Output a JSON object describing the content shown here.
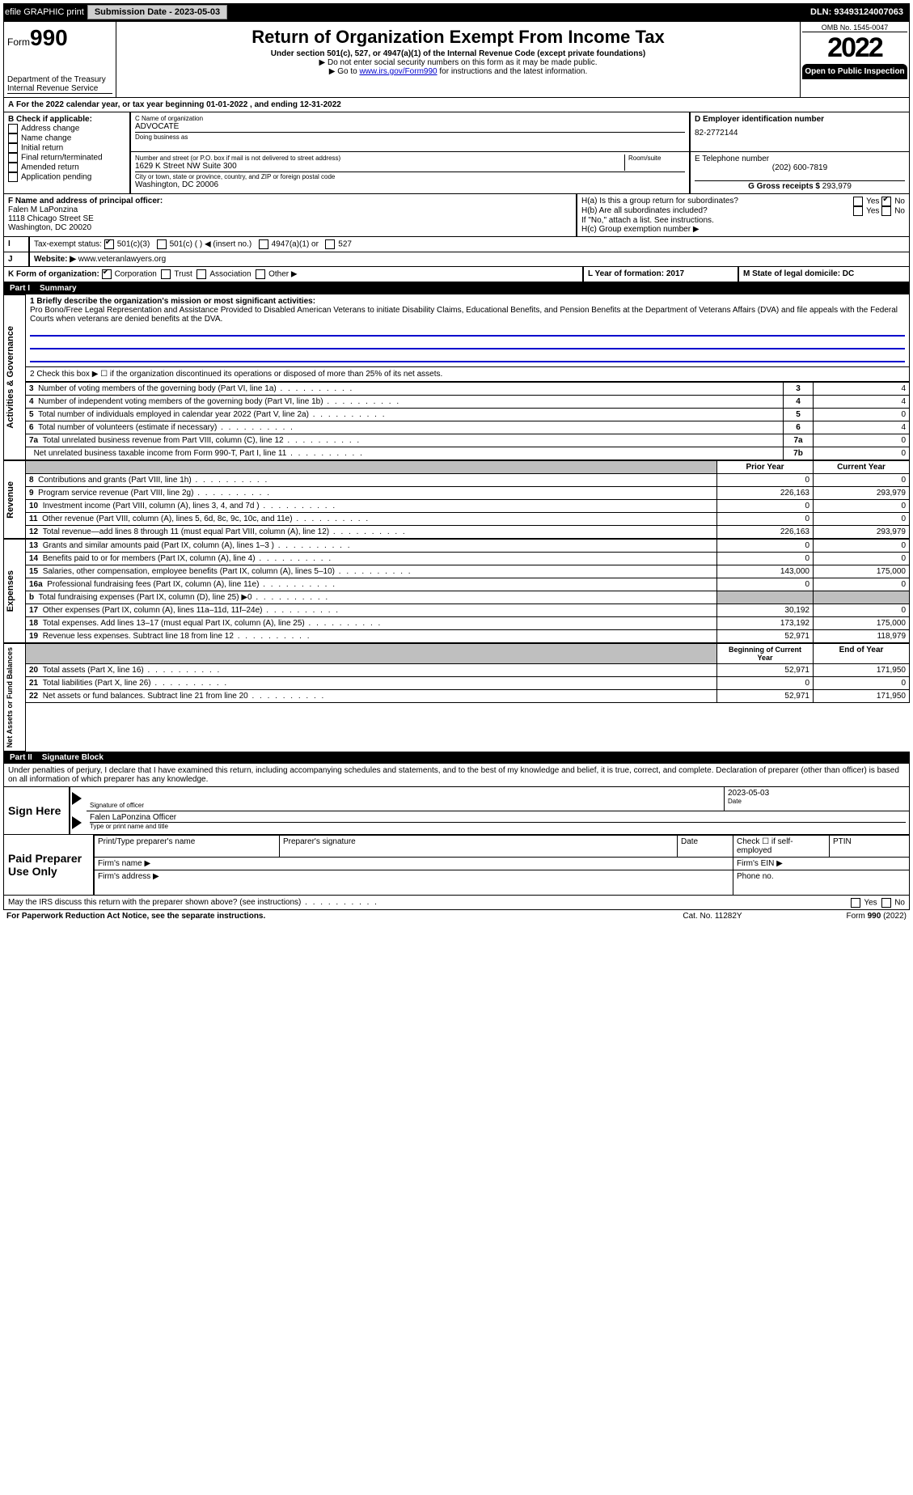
{
  "topbar": {
    "efile": "efile GRAPHIC print",
    "submission_label": "Submission Date - 2023-05-03",
    "dln_label": "DLN: 93493124007063"
  },
  "header": {
    "form_prefix": "Form",
    "form_number": "990",
    "dept": "Department of the Treasury",
    "irs": "Internal Revenue Service",
    "title": "Return of Organization Exempt From Income Tax",
    "subtitle": "Under section 501(c), 527, or 4947(a)(1) of the Internal Revenue Code (except private foundations)",
    "ssn_note": "▶ Do not enter social security numbers on this form as it may be made public.",
    "goto_prefix": "▶ Go to ",
    "goto_link": "www.irs.gov/Form990",
    "goto_suffix": " for instructions and the latest information.",
    "omb": "OMB No. 1545-0047",
    "year": "2022",
    "inspect": "Open to Public Inspection"
  },
  "A": {
    "text": "For the 2022 calendar year, or tax year beginning 01-01-2022    , and ending 12-31-2022"
  },
  "B": {
    "heading": "B Check if applicable:",
    "items": [
      "Address change",
      "Name change",
      "Initial return",
      "Final return/terminated",
      "Amended return",
      "Application pending"
    ]
  },
  "C": {
    "name_label": "C Name of organization",
    "name": "ADVOCATE",
    "dba_label": "Doing business as",
    "street_label": "Number and street (or P.O. box if mail is not delivered to street address)",
    "room_label": "Room/suite",
    "street": "1629 K Street NW Suite 300",
    "city_label": "City or town, state or province, country, and ZIP or foreign postal code",
    "city": "Washington, DC  20006"
  },
  "D": {
    "label": "D Employer identification number",
    "value": "82-2772144"
  },
  "E": {
    "label": "E Telephone number",
    "value": "(202) 600-7819"
  },
  "G": {
    "label": "G Gross receipts $",
    "value": "293,979"
  },
  "F": {
    "label": "F  Name and address of principal officer:",
    "name": "Falen M LaPonzina",
    "addr1": "1118 Chicago Street SE",
    "addr2": "Washington, DC  20020"
  },
  "H": {
    "a_label": "H(a)  Is this a group return for subordinates?",
    "a_yes": "Yes",
    "a_no": "No",
    "b_label": "H(b)  Are all subordinates included?",
    "b_note": "If \"No,\" attach a list. See instructions.",
    "c_label": "H(c)  Group exemption number ▶"
  },
  "I": {
    "label": "Tax-exempt status:",
    "opt1": "501(c)(3)",
    "opt2": "501(c) (   ) ◀ (insert no.)",
    "opt3": "4947(a)(1) or",
    "opt4": "527"
  },
  "J": {
    "label": "Website: ▶",
    "value": "www.veteranlawyers.org"
  },
  "K": {
    "label": "K Form of organization:",
    "opts": [
      "Corporation",
      "Trust",
      "Association",
      "Other ▶"
    ]
  },
  "L": {
    "label": "L Year of formation: 2017"
  },
  "M": {
    "label": "M State of legal domicile: DC"
  },
  "part1": {
    "band_part": "Part I",
    "band_title": "Summary",
    "q1_label": "1 Briefly describe the organization's mission or most significant activities:",
    "q1_text": "Pro Bono/Free Legal Representation and Assistance Provided to Disabled American Veterans to initiate Disability Claims, Educational Benefits, and Pension Benefits at the Department of Veterans Affairs (DVA) and file appeals with the Federal Courts when veterans are denied benefits at the DVA.",
    "q2": "2   Check this box ▶ ☐  if the organization discontinued its operations or disposed of more than 25% of its net assets.",
    "rows_gov": [
      {
        "n": "3",
        "t": "Number of voting members of the governing body (Part VI, line 1a)",
        "box": "3",
        "v": "4"
      },
      {
        "n": "4",
        "t": "Number of independent voting members of the governing body (Part VI, line 1b)",
        "box": "4",
        "v": "4"
      },
      {
        "n": "5",
        "t": "Total number of individuals employed in calendar year 2022 (Part V, line 2a)",
        "box": "5",
        "v": "0"
      },
      {
        "n": "6",
        "t": "Total number of volunteers (estimate if necessary)",
        "box": "6",
        "v": "4"
      },
      {
        "n": "7a",
        "t": "Total unrelated business revenue from Part VIII, column (C), line 12",
        "box": "7a",
        "v": "0"
      },
      {
        "n": "",
        "t": "Net unrelated business taxable income from Form 990-T, Part I, line 11",
        "box": "7b",
        "v": "0"
      }
    ],
    "hdr_prior": "Prior Year",
    "hdr_current": "Current Year",
    "rows_rev": [
      {
        "n": "8",
        "t": "Contributions and grants (Part VIII, line 1h)",
        "p": "0",
        "c": "0"
      },
      {
        "n": "9",
        "t": "Program service revenue (Part VIII, line 2g)",
        "p": "226,163",
        "c": "293,979"
      },
      {
        "n": "10",
        "t": "Investment income (Part VIII, column (A), lines 3, 4, and 7d )",
        "p": "0",
        "c": "0"
      },
      {
        "n": "11",
        "t": "Other revenue (Part VIII, column (A), lines 5, 6d, 8c, 9c, 10c, and 11e)",
        "p": "0",
        "c": "0"
      },
      {
        "n": "12",
        "t": "Total revenue—add lines 8 through 11 (must equal Part VIII, column (A), line 12)",
        "p": "226,163",
        "c": "293,979"
      }
    ],
    "rows_exp": [
      {
        "n": "13",
        "t": "Grants and similar amounts paid (Part IX, column (A), lines 1–3 )",
        "p": "0",
        "c": "0"
      },
      {
        "n": "14",
        "t": "Benefits paid to or for members (Part IX, column (A), line 4)",
        "p": "0",
        "c": "0"
      },
      {
        "n": "15",
        "t": "Salaries, other compensation, employee benefits (Part IX, column (A), lines 5–10)",
        "p": "143,000",
        "c": "175,000"
      },
      {
        "n": "16a",
        "t": "Professional fundraising fees (Part IX, column (A), line 11e)",
        "p": "0",
        "c": "0"
      },
      {
        "n": "b",
        "t": "Total fundraising expenses (Part IX, column (D), line 25) ▶0",
        "p": "",
        "c": "",
        "shadeC": true,
        "shadeP": true
      },
      {
        "n": "17",
        "t": "Other expenses (Part IX, column (A), lines 11a–11d, 11f–24e)",
        "p": "30,192",
        "c": "0"
      },
      {
        "n": "18",
        "t": "Total expenses. Add lines 13–17 (must equal Part IX, column (A), line 25)",
        "p": "173,192",
        "c": "175,000"
      },
      {
        "n": "19",
        "t": "Revenue less expenses. Subtract line 18 from line 12",
        "p": "52,971",
        "c": "118,979"
      }
    ],
    "hdr_begin": "Beginning of Current Year",
    "hdr_end": "End of Year",
    "rows_net": [
      {
        "n": "20",
        "t": "Total assets (Part X, line 16)",
        "p": "52,971",
        "c": "171,950"
      },
      {
        "n": "21",
        "t": "Total liabilities (Part X, line 26)",
        "p": "0",
        "c": "0"
      },
      {
        "n": "22",
        "t": "Net assets or fund balances. Subtract line 21 from line 20",
        "p": "52,971",
        "c": "171,950"
      }
    ],
    "side_gov": "Activities & Governance",
    "side_rev": "Revenue",
    "side_exp": "Expenses",
    "side_net": "Net Assets or Fund Balances"
  },
  "part2": {
    "band_part": "Part II",
    "band_title": "Signature Block",
    "penalty": "Under penalties of perjury, I declare that I have examined this return, including accompanying schedules and statements, and to the best of my knowledge and belief, it is true, correct, and complete. Declaration of preparer (other than officer) is based on all information of which preparer has any knowledge.",
    "sign_here": "Sign Here",
    "sig_officer": "Signature of officer",
    "date": "Date",
    "date_val": "2023-05-03",
    "name_title": "Falen LaPonzina  Officer",
    "type_print": "Type or print name and title",
    "paid": "Paid Preparer Use Only",
    "pt_name": "Print/Type preparer's name",
    "pt_sig": "Preparer's signature",
    "pt_date": "Date",
    "pt_check": "Check ☐ if self-employed",
    "ptin": "PTIN",
    "firm_name": "Firm's name    ▶",
    "firm_ein": "Firm's EIN ▶",
    "firm_addr": "Firm's address ▶",
    "phone": "Phone no.",
    "discuss": "May the IRS discuss this return with the preparer shown above? (see instructions)",
    "yes": "Yes",
    "no": "No",
    "paperwork": "For Paperwork Reduction Act Notice, see the separate instructions.",
    "cat": "Cat. No. 11282Y",
    "formend": "Form 990 (2022)"
  }
}
